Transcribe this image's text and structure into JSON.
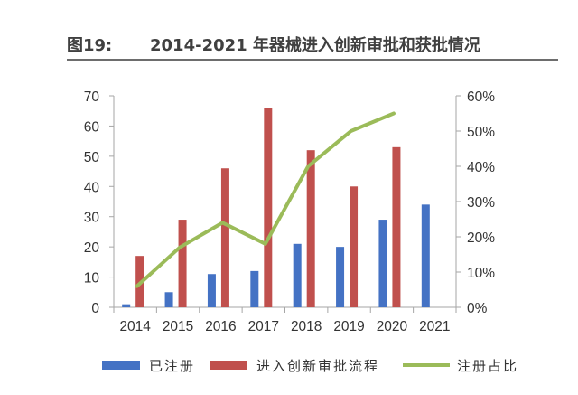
{
  "figure": {
    "label": "图19:",
    "title": "2014-2021 年器械进入创新审批和获批情况"
  },
  "colors": {
    "registered": "#4472C4",
    "innovation": "#C0504D",
    "ratio": "#9BBB59"
  },
  "chart_data": {
    "type": "bar",
    "categories": [
      "2014",
      "2015",
      "2016",
      "2017",
      "2018",
      "2019",
      "2020",
      "2021"
    ],
    "series": [
      {
        "name": "已注册",
        "type": "bar",
        "axis": "left",
        "values": [
          1,
          5,
          11,
          12,
          21,
          20,
          29,
          34
        ]
      },
      {
        "name": "进入创新审批流程",
        "type": "bar",
        "axis": "left",
        "values": [
          17,
          29,
          46,
          66,
          52,
          40,
          53,
          null
        ]
      },
      {
        "name": "注册占比",
        "type": "line",
        "axis": "right",
        "values": [
          0.06,
          0.17,
          0.24,
          0.18,
          0.4,
          0.5,
          0.55,
          null
        ]
      }
    ],
    "y_left": {
      "min": 0,
      "max": 70,
      "step": 10,
      "ticks": [
        "0",
        "10",
        "20",
        "30",
        "40",
        "50",
        "60",
        "70"
      ]
    },
    "y_right": {
      "min": 0,
      "max": 0.6,
      "step": 0.1,
      "ticks": [
        "0%",
        "10%",
        "20%",
        "30%",
        "40%",
        "50%",
        "60%"
      ]
    },
    "grid": false,
    "legend_position": "bottom"
  }
}
